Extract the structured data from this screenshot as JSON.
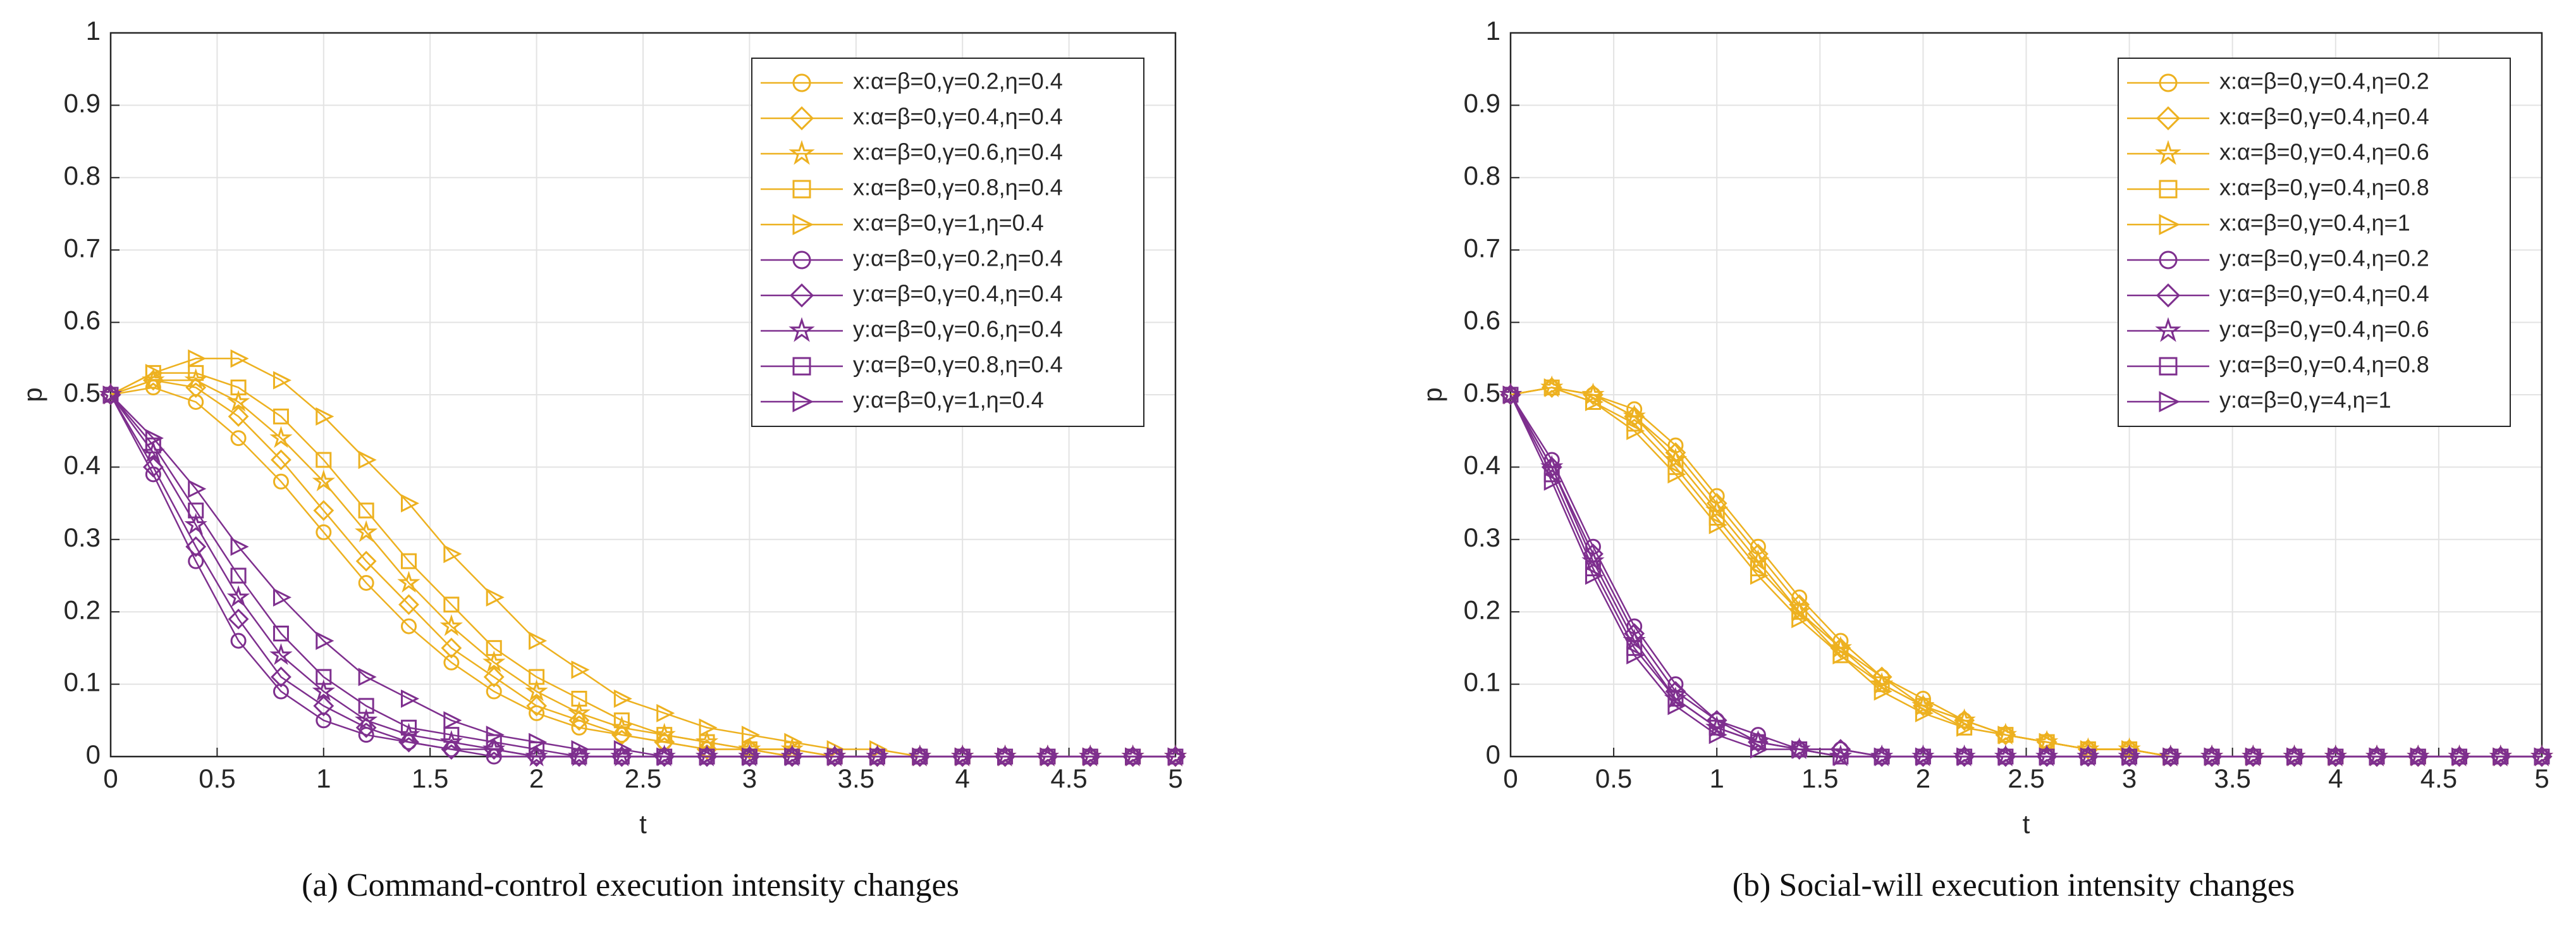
{
  "chart_data": [
    {
      "type": "line",
      "title": "(a) Command-control execution intensity changes",
      "xlabel": "t",
      "ylabel": "p",
      "x": [
        0,
        0.2,
        0.4,
        0.6,
        0.8,
        1,
        1.2,
        1.4,
        1.6,
        1.8,
        2,
        2.2,
        2.4,
        2.6,
        2.8,
        3,
        3.2,
        3.4,
        3.6,
        3.8,
        4,
        4.2,
        4.4,
        4.6,
        4.8,
        5
      ],
      "xlim": [
        0,
        5
      ],
      "ylim": [
        0,
        1
      ],
      "xticks": [
        0,
        0.5,
        1,
        1.5,
        2,
        2.5,
        3,
        3.5,
        4,
        4.5,
        5
      ],
      "yticks": [
        0,
        0.1,
        0.2,
        0.3,
        0.4,
        0.5,
        0.6,
        0.7,
        0.8,
        0.9,
        1
      ],
      "grid": true,
      "legend": "upper-right",
      "series": [
        {
          "name": "x:α=β=0,γ=0.2,η=0.4",
          "color": "#EDB120",
          "marker": "circle",
          "values": [
            0.5,
            0.51,
            0.49,
            0.44,
            0.38,
            0.31,
            0.24,
            0.18,
            0.13,
            0.09,
            0.06,
            0.04,
            0.03,
            0.02,
            0.01,
            0.01,
            0,
            0,
            0,
            0,
            0,
            0,
            0,
            0,
            0,
            0
          ]
        },
        {
          "name": "x:α=β=0,γ=0.4,η=0.4",
          "color": "#EDB120",
          "marker": "diamond",
          "values": [
            0.5,
            0.52,
            0.51,
            0.47,
            0.41,
            0.34,
            0.27,
            0.21,
            0.15,
            0.11,
            0.07,
            0.05,
            0.03,
            0.02,
            0.01,
            0.01,
            0,
            0,
            0,
            0,
            0,
            0,
            0,
            0,
            0,
            0
          ]
        },
        {
          "name": "x:α=β=0,γ=0.6,η=0.4",
          "color": "#EDB120",
          "marker": "star",
          "values": [
            0.5,
            0.52,
            0.52,
            0.49,
            0.44,
            0.38,
            0.31,
            0.24,
            0.18,
            0.13,
            0.09,
            0.06,
            0.04,
            0.03,
            0.02,
            0.01,
            0.01,
            0,
            0,
            0,
            0,
            0,
            0,
            0,
            0,
            0
          ]
        },
        {
          "name": "x:α=β=0,γ=0.8,η=0.4",
          "color": "#EDB120",
          "marker": "square",
          "values": [
            0.5,
            0.53,
            0.53,
            0.51,
            0.47,
            0.41,
            0.34,
            0.27,
            0.21,
            0.15,
            0.11,
            0.08,
            0.05,
            0.03,
            0.02,
            0.01,
            0.01,
            0,
            0,
            0,
            0,
            0,
            0,
            0,
            0,
            0
          ]
        },
        {
          "name": "x:α=β=0,γ=1,η=0.4",
          "color": "#EDB120",
          "marker": "triangle",
          "values": [
            0.5,
            0.53,
            0.55,
            0.55,
            0.52,
            0.47,
            0.41,
            0.35,
            0.28,
            0.22,
            0.16,
            0.12,
            0.08,
            0.06,
            0.04,
            0.03,
            0.02,
            0.01,
            0.01,
            0,
            0,
            0,
            0,
            0,
            0,
            0
          ]
        },
        {
          "name": "y:α=β=0,γ=0.2,η=0.4",
          "color": "#7E2F8E",
          "marker": "circle",
          "values": [
            0.5,
            0.39,
            0.27,
            0.16,
            0.09,
            0.05,
            0.03,
            0.02,
            0.01,
            0,
            0,
            0,
            0,
            0,
            0,
            0,
            0,
            0,
            0,
            0,
            0,
            0,
            0,
            0,
            0,
            0
          ]
        },
        {
          "name": "y:α=β=0,γ=0.4,η=0.4",
          "color": "#7E2F8E",
          "marker": "diamond",
          "values": [
            0.5,
            0.4,
            0.29,
            0.19,
            0.11,
            0.07,
            0.04,
            0.02,
            0.01,
            0.01,
            0,
            0,
            0,
            0,
            0,
            0,
            0,
            0,
            0,
            0,
            0,
            0,
            0,
            0,
            0,
            0
          ]
        },
        {
          "name": "y:α=β=0,γ=0.6,η=0.4",
          "color": "#7E2F8E",
          "marker": "star",
          "values": [
            0.5,
            0.42,
            0.32,
            0.22,
            0.14,
            0.09,
            0.05,
            0.03,
            0.02,
            0.01,
            0,
            0,
            0,
            0,
            0,
            0,
            0,
            0,
            0,
            0,
            0,
            0,
            0,
            0,
            0,
            0
          ]
        },
        {
          "name": "y:α=β=0,γ=0.8,η=0.4",
          "color": "#7E2F8E",
          "marker": "square",
          "values": [
            0.5,
            0.43,
            0.34,
            0.25,
            0.17,
            0.11,
            0.07,
            0.04,
            0.03,
            0.02,
            0.01,
            0,
            0,
            0,
            0,
            0,
            0,
            0,
            0,
            0,
            0,
            0,
            0,
            0,
            0,
            0
          ]
        },
        {
          "name": "y:α=β=0,γ=1,η=0.4",
          "color": "#7E2F8E",
          "marker": "triangle",
          "values": [
            0.5,
            0.44,
            0.37,
            0.29,
            0.22,
            0.16,
            0.11,
            0.08,
            0.05,
            0.03,
            0.02,
            0.01,
            0.01,
            0,
            0,
            0,
            0,
            0,
            0,
            0,
            0,
            0,
            0,
            0,
            0,
            0
          ]
        }
      ]
    },
    {
      "type": "line",
      "title": "(b) Social-will execution intensity changes",
      "xlabel": "t",
      "ylabel": "p",
      "x": [
        0,
        0.2,
        0.4,
        0.6,
        0.8,
        1,
        1.2,
        1.4,
        1.6,
        1.8,
        2,
        2.2,
        2.4,
        2.6,
        2.8,
        3,
        3.2,
        3.4,
        3.6,
        3.8,
        4,
        4.2,
        4.4,
        4.6,
        4.8,
        5
      ],
      "xlim": [
        0,
        5
      ],
      "ylim": [
        0,
        1
      ],
      "xticks": [
        0,
        0.5,
        1,
        1.5,
        2,
        2.5,
        3,
        3.5,
        4,
        4.5,
        5
      ],
      "yticks": [
        0,
        0.1,
        0.2,
        0.3,
        0.4,
        0.5,
        0.6,
        0.7,
        0.8,
        0.9,
        1
      ],
      "grid": true,
      "legend": "upper-right",
      "series": [
        {
          "name": "x:α=β=0,γ=0.4,η=0.2",
          "color": "#EDB120",
          "marker": "circle",
          "values": [
            0.5,
            0.51,
            0.5,
            0.48,
            0.43,
            0.36,
            0.29,
            0.22,
            0.16,
            0.11,
            0.08,
            0.05,
            0.03,
            0.02,
            0.01,
            0.01,
            0,
            0,
            0,
            0,
            0,
            0,
            0,
            0,
            0,
            0
          ]
        },
        {
          "name": "x:α=β=0,γ=0.4,η=0.4",
          "color": "#EDB120",
          "marker": "diamond",
          "values": [
            0.5,
            0.51,
            0.5,
            0.47,
            0.42,
            0.35,
            0.28,
            0.21,
            0.15,
            0.11,
            0.07,
            0.05,
            0.03,
            0.02,
            0.01,
            0.01,
            0,
            0,
            0,
            0,
            0,
            0,
            0,
            0,
            0,
            0
          ]
        },
        {
          "name": "x:α=β=0,γ=0.4,η=0.6",
          "color": "#EDB120",
          "marker": "star",
          "values": [
            0.5,
            0.51,
            0.5,
            0.47,
            0.41,
            0.34,
            0.27,
            0.2,
            0.15,
            0.1,
            0.07,
            0.05,
            0.03,
            0.02,
            0.01,
            0.01,
            0,
            0,
            0,
            0,
            0,
            0,
            0,
            0,
            0,
            0
          ]
        },
        {
          "name": "x:α=β=0,γ=0.4,η=0.8",
          "color": "#EDB120",
          "marker": "square",
          "values": [
            0.5,
            0.51,
            0.49,
            0.46,
            0.4,
            0.33,
            0.26,
            0.2,
            0.14,
            0.1,
            0.07,
            0.04,
            0.03,
            0.02,
            0.01,
            0.01,
            0,
            0,
            0,
            0,
            0,
            0,
            0,
            0,
            0,
            0
          ]
        },
        {
          "name": "x:α=β=0,γ=0.4,η=1",
          "color": "#EDB120",
          "marker": "triangle",
          "values": [
            0.5,
            0.51,
            0.49,
            0.45,
            0.39,
            0.32,
            0.25,
            0.19,
            0.14,
            0.09,
            0.06,
            0.04,
            0.03,
            0.02,
            0.01,
            0.01,
            0,
            0,
            0,
            0,
            0,
            0,
            0,
            0,
            0,
            0
          ]
        },
        {
          "name": "y:α=β=0,γ=0.4,η=0.2",
          "color": "#7E2F8E",
          "marker": "circle",
          "values": [
            0.5,
            0.41,
            0.29,
            0.18,
            0.1,
            0.05,
            0.03,
            0.01,
            0.01,
            0,
            0,
            0,
            0,
            0,
            0,
            0,
            0,
            0,
            0,
            0,
            0,
            0,
            0,
            0,
            0,
            0
          ]
        },
        {
          "name": "y:α=β=0,γ=0.4,η=0.4",
          "color": "#7E2F8E",
          "marker": "diamond",
          "values": [
            0.5,
            0.4,
            0.28,
            0.17,
            0.09,
            0.05,
            0.02,
            0.01,
            0.01,
            0,
            0,
            0,
            0,
            0,
            0,
            0,
            0,
            0,
            0,
            0,
            0,
            0,
            0,
            0,
            0,
            0
          ]
        },
        {
          "name": "y:α=β=0,γ=0.4,η=0.6",
          "color": "#7E2F8E",
          "marker": "star",
          "values": [
            0.5,
            0.4,
            0.27,
            0.16,
            0.08,
            0.04,
            0.02,
            0.01,
            0,
            0,
            0,
            0,
            0,
            0,
            0,
            0,
            0,
            0,
            0,
            0,
            0,
            0,
            0,
            0,
            0,
            0
          ]
        },
        {
          "name": "y:α=β=0,γ=0.4,η=0.8",
          "color": "#7E2F8E",
          "marker": "square",
          "values": [
            0.5,
            0.39,
            0.26,
            0.15,
            0.08,
            0.04,
            0.02,
            0.01,
            0,
            0,
            0,
            0,
            0,
            0,
            0,
            0,
            0,
            0,
            0,
            0,
            0,
            0,
            0,
            0,
            0,
            0
          ]
        },
        {
          "name": "y:α=β=0,γ=4,η=1",
          "color": "#7E2F8E",
          "marker": "triangle",
          "values": [
            0.5,
            0.38,
            0.25,
            0.14,
            0.07,
            0.03,
            0.01,
            0.01,
            0,
            0,
            0,
            0,
            0,
            0,
            0,
            0,
            0,
            0,
            0,
            0,
            0,
            0,
            0,
            0,
            0,
            0
          ]
        }
      ]
    }
  ]
}
